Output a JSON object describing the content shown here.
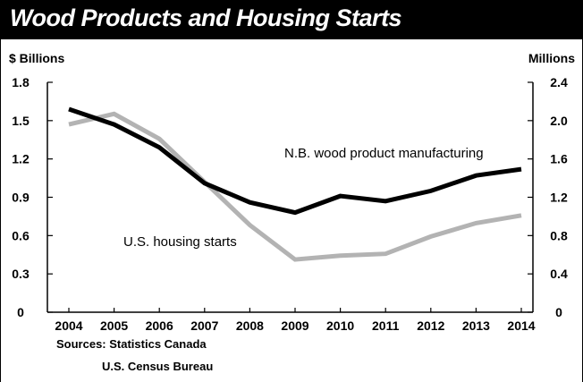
{
  "chart_data": {
    "type": "line",
    "title": "Wood Products and Housing Starts",
    "ylabel_left": "$ Billions",
    "ylabel_right": "Millions",
    "x": [
      "2004",
      "2005",
      "2006",
      "2007",
      "2008",
      "2009",
      "2010",
      "2011",
      "2012",
      "2013",
      "2014"
    ],
    "yleft_ticks": [
      "1.8",
      "1.5",
      "1.2",
      "0.9",
      "0.6",
      "0.3",
      "0"
    ],
    "yright_ticks": [
      "2.4",
      "2.0",
      "1.6",
      "1.2",
      "0.8",
      "0.4",
      "0"
    ],
    "ylim_left": [
      0,
      1.8
    ],
    "ylim_right": [
      0,
      2.4
    ],
    "series": [
      {
        "name": "N.B. wood product manufacturing",
        "axis": "left",
        "color": "#000000",
        "values": [
          1.59,
          1.47,
          1.29,
          1.01,
          0.86,
          0.78,
          0.91,
          0.87,
          0.95,
          1.07,
          1.12
        ]
      },
      {
        "name": "U.S. housing starts",
        "axis": "right",
        "color": "#b3b3b3",
        "values": [
          1.96,
          2.07,
          1.81,
          1.36,
          0.91,
          0.55,
          0.59,
          0.61,
          0.79,
          0.93,
          1.01
        ]
      }
    ],
    "sources": [
      "Sources: Statistics Canada",
      "U.S. Census Bureau"
    ]
  }
}
